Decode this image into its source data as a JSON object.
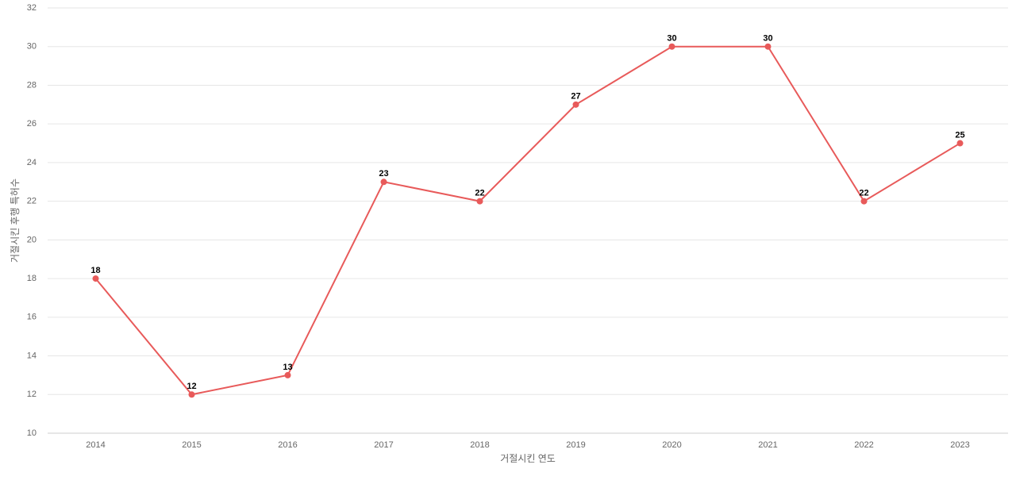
{
  "chart_data": {
    "type": "line",
    "x_label": "거절시킨 연도",
    "y_label": "거절시킨 후행 특허수",
    "categories": [
      "2014",
      "2015",
      "2016",
      "2017",
      "2018",
      "2019",
      "2020",
      "2021",
      "2022",
      "2023"
    ],
    "series": [
      {
        "name": "거절시킨 후행 특허수",
        "color": "#e85a5a",
        "values": [
          18,
          12,
          13,
          23,
          22,
          27,
          30,
          30,
          22,
          25
        ]
      }
    ],
    "ylim": [
      10,
      32
    ],
    "yticks": [
      10,
      12,
      14,
      16,
      18,
      20,
      22,
      24,
      26,
      28,
      30,
      32
    ],
    "grid": true
  }
}
